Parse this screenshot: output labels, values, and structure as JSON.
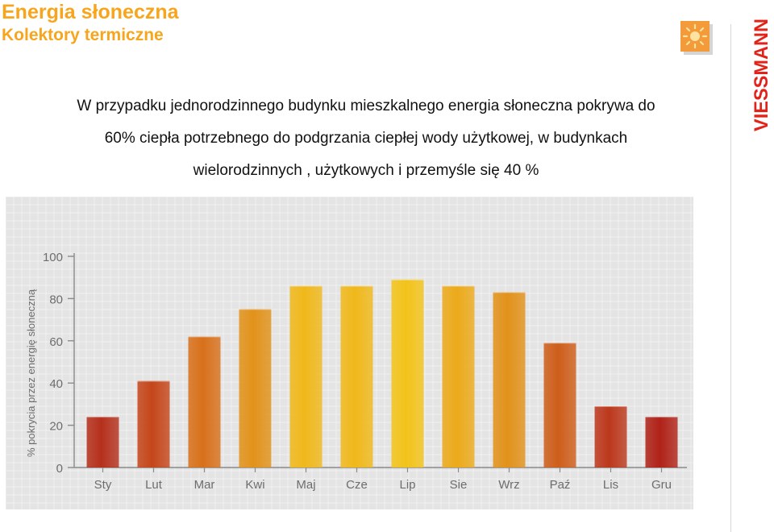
{
  "header": {
    "title": "Energia słoneczna",
    "subtitle": "Kolektory termiczne"
  },
  "description": {
    "line1": "W przypadku jednorodzinnego budynku mieszkalnego energia słoneczna pokrywa do",
    "line2": "60% ciepła potrzebnego do podgrzania ciepłej wody użytkowej, w budynkach",
    "line3": "wielorodzinnych , użytkowych i przemyśle się 40 %"
  },
  "brand": {
    "logo_text": "VIESSMANN",
    "color": "#e2231a",
    "sun_icon": "sun-icon",
    "sun_color": "#f39b3a"
  },
  "chart_data": {
    "type": "bar",
    "categories": [
      "Sty",
      "Lut",
      "Mar",
      "Kwi",
      "Maj",
      "Cze",
      "Lip",
      "Sie",
      "Wrz",
      "Paź",
      "Lis",
      "Gru"
    ],
    "values": [
      24,
      41,
      62,
      75,
      86,
      86,
      89,
      86,
      83,
      59,
      29,
      24
    ],
    "ylabel": "% pokrycia przez energię słoneczną",
    "xlabel": "",
    "ylim": [
      0,
      100
    ],
    "yticks": [
      0,
      20,
      40,
      60,
      80,
      100
    ],
    "grid": true,
    "bar_colors": [
      "#b5301c",
      "#c5461a",
      "#d8701a",
      "#e2921a",
      "#f0b81a",
      "#f0b81a",
      "#f3c31a",
      "#ecaa1a",
      "#e2921a",
      "#ce5e1a",
      "#bc381c",
      "#b02218"
    ]
  }
}
